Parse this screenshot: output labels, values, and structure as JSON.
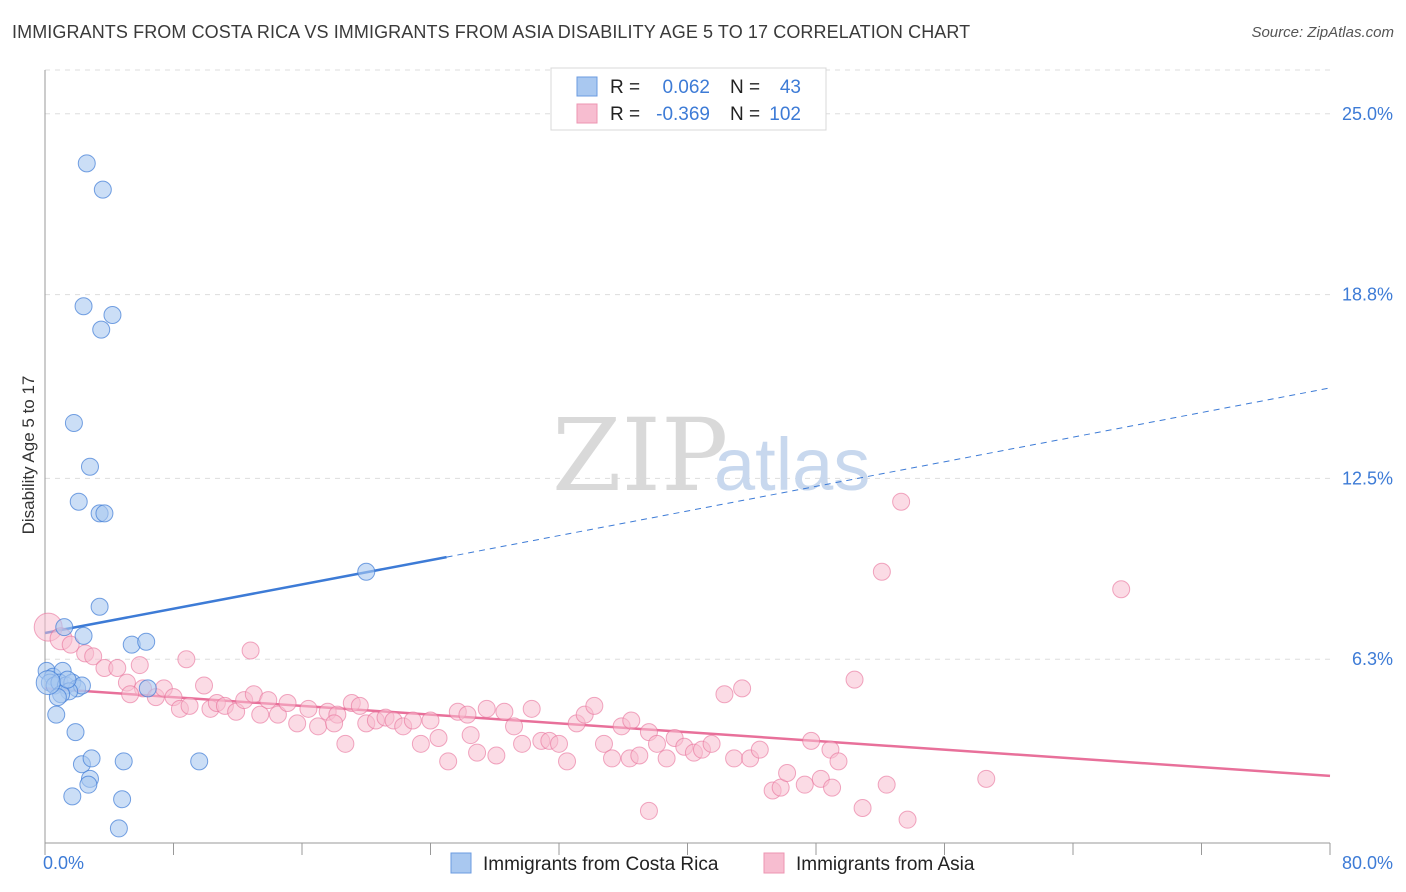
{
  "title": "IMMIGRANTS FROM COSTA RICA VS IMMIGRANTS FROM ASIA DISABILITY AGE 5 TO 17 CORRELATION CHART",
  "source": "Source: ZipAtlas.com",
  "watermark": {
    "zip": "ZIP",
    "atlas": "atlas"
  },
  "colors": {
    "blue": "#3d7bd6",
    "blue_fill": "#a9c8f0",
    "pink": "#e8709a",
    "pink_fill": "#f7bdd0",
    "grid": "#dddddd"
  },
  "chart_data": {
    "type": "scatter",
    "title": "IMMIGRANTS FROM COSTA RICA VS IMMIGRANTS FROM ASIA DISABILITY AGE 5 TO 17 CORRELATION CHART",
    "xlabel": "",
    "ylabel": "Disability Age 5 to 17",
    "xlim": [
      0,
      80
    ],
    "ylim": [
      0,
      26.5
    ],
    "x_tick_labels": [
      "0.0%",
      "80.0%"
    ],
    "y_ticks": [
      6.3,
      12.5,
      18.8,
      25.0
    ],
    "y_tick_labels": [
      "6.3%",
      "12.5%",
      "18.8%",
      "25.0%"
    ],
    "grid": true,
    "legend_position": "top-center",
    "legend": [
      {
        "r_label": "R =",
        "r": "0.062",
        "n_label": "N =",
        "n": "43"
      },
      {
        "r_label": "R =",
        "r": "-0.369",
        "n_label": "N =",
        "n": "102"
      }
    ],
    "series": [
      {
        "name": "Immigrants from Costa Rica",
        "trend": {
          "x0": 0,
          "y0": 7.2,
          "x1": 25,
          "y1": 9.8,
          "dash_to_x": 80,
          "dash_to_y": 15.6
        },
        "points": [
          [
            2.6,
            23.3
          ],
          [
            3.6,
            22.4
          ],
          [
            2.4,
            18.4
          ],
          [
            4.2,
            18.1
          ],
          [
            3.5,
            17.6
          ],
          [
            1.8,
            14.4
          ],
          [
            2.8,
            12.9
          ],
          [
            2.1,
            11.7
          ],
          [
            3.4,
            11.3
          ],
          [
            3.7,
            11.3
          ],
          [
            3.4,
            8.1
          ],
          [
            1.2,
            7.4
          ],
          [
            2.4,
            7.1
          ],
          [
            5.4,
            6.8
          ],
          [
            6.3,
            6.9
          ],
          [
            0.1,
            5.9
          ],
          [
            0.5,
            5.7
          ],
          [
            1.1,
            5.9
          ],
          [
            0.3,
            5.5
          ],
          [
            0.6,
            5.4
          ],
          [
            0.9,
            5.5
          ],
          [
            1.3,
            5.4
          ],
          [
            1.7,
            5.5
          ],
          [
            2.0,
            5.3
          ],
          [
            2.3,
            5.4
          ],
          [
            1.5,
            5.2
          ],
          [
            1.0,
            5.1
          ],
          [
            1.4,
            5.6
          ],
          [
            0.8,
            5.0
          ],
          [
            6.4,
            5.3
          ],
          [
            0.7,
            4.4
          ],
          [
            1.9,
            3.8
          ],
          [
            2.3,
            2.7
          ],
          [
            2.9,
            2.9
          ],
          [
            2.8,
            2.2
          ],
          [
            2.7,
            2.0
          ],
          [
            1.7,
            1.6
          ],
          [
            4.9,
            2.8
          ],
          [
            9.6,
            2.8
          ],
          [
            4.8,
            1.5
          ],
          [
            4.6,
            0.5
          ],
          [
            20.0,
            9.3
          ],
          [
            0.2,
            5.5
          ]
        ]
      },
      {
        "name": "Immigrants from Asia",
        "trend": {
          "x0": 0,
          "y0": 5.3,
          "x1": 80,
          "y1": 2.3
        },
        "points": [
          [
            0.2,
            7.4
          ],
          [
            1.0,
            7.0
          ],
          [
            1.6,
            6.8
          ],
          [
            2.5,
            6.5
          ],
          [
            3.0,
            6.4
          ],
          [
            3.7,
            6.0
          ],
          [
            4.5,
            6.0
          ],
          [
            5.9,
            6.1
          ],
          [
            5.1,
            5.5
          ],
          [
            6.1,
            5.3
          ],
          [
            5.3,
            5.1
          ],
          [
            6.9,
            5.0
          ],
          [
            7.4,
            5.3
          ],
          [
            8.0,
            5.0
          ],
          [
            8.4,
            4.6
          ],
          [
            9.0,
            4.7
          ],
          [
            9.9,
            5.4
          ],
          [
            10.3,
            4.6
          ],
          [
            10.7,
            4.8
          ],
          [
            11.2,
            4.7
          ],
          [
            11.9,
            4.5
          ],
          [
            12.4,
            4.9
          ],
          [
            13.0,
            5.1
          ],
          [
            13.4,
            4.4
          ],
          [
            13.9,
            4.9
          ],
          [
            14.5,
            4.4
          ],
          [
            15.1,
            4.8
          ],
          [
            15.7,
            4.1
          ],
          [
            16.4,
            4.6
          ],
          [
            17.0,
            4.0
          ],
          [
            17.6,
            4.5
          ],
          [
            18.2,
            4.4
          ],
          [
            18.7,
            3.4
          ],
          [
            19.1,
            4.8
          ],
          [
            19.6,
            4.7
          ],
          [
            20.0,
            4.1
          ],
          [
            20.6,
            4.2
          ],
          [
            21.2,
            4.3
          ],
          [
            21.7,
            4.2
          ],
          [
            22.3,
            4.0
          ],
          [
            22.9,
            4.2
          ],
          [
            23.4,
            3.4
          ],
          [
            24.0,
            4.2
          ],
          [
            24.5,
            3.6
          ],
          [
            25.1,
            2.8
          ],
          [
            25.7,
            4.5
          ],
          [
            26.3,
            4.4
          ],
          [
            26.9,
            3.1
          ],
          [
            27.5,
            4.6
          ],
          [
            28.1,
            3.0
          ],
          [
            28.6,
            4.5
          ],
          [
            29.2,
            4.0
          ],
          [
            29.7,
            3.4
          ],
          [
            30.3,
            4.6
          ],
          [
            30.9,
            3.5
          ],
          [
            31.4,
            3.5
          ],
          [
            32.0,
            3.4
          ],
          [
            32.5,
            2.8
          ],
          [
            33.1,
            4.1
          ],
          [
            33.6,
            4.4
          ],
          [
            34.2,
            4.7
          ],
          [
            34.8,
            3.4
          ],
          [
            35.3,
            2.9
          ],
          [
            35.9,
            4.0
          ],
          [
            36.4,
            2.9
          ],
          [
            37.0,
            3.0
          ],
          [
            37.6,
            3.8
          ],
          [
            38.1,
            3.4
          ],
          [
            38.7,
            2.9
          ],
          [
            39.2,
            3.6
          ],
          [
            39.8,
            3.3
          ],
          [
            40.4,
            3.1
          ],
          [
            40.9,
            3.2
          ],
          [
            41.5,
            3.4
          ],
          [
            37.6,
            1.1
          ],
          [
            42.3,
            5.1
          ],
          [
            42.9,
            2.9
          ],
          [
            43.4,
            5.3
          ],
          [
            43.9,
            2.9
          ],
          [
            44.5,
            3.2
          ],
          [
            45.3,
            1.8
          ],
          [
            45.8,
            1.9
          ],
          [
            46.2,
            2.4
          ],
          [
            47.3,
            2.0
          ],
          [
            47.7,
            3.5
          ],
          [
            48.3,
            2.2
          ],
          [
            48.9,
            3.2
          ],
          [
            49.4,
            2.8
          ],
          [
            49.0,
            1.9
          ],
          [
            50.4,
            5.6
          ],
          [
            50.9,
            1.2
          ],
          [
            52.1,
            9.3
          ],
          [
            52.4,
            2.0
          ],
          [
            53.3,
            11.7
          ],
          [
            53.7,
            0.8
          ],
          [
            67.0,
            8.7
          ],
          [
            58.6,
            2.2
          ],
          [
            12.8,
            6.6
          ],
          [
            18.0,
            4.1
          ],
          [
            36.5,
            4.2
          ],
          [
            26.5,
            3.7
          ],
          [
            8.8,
            6.3
          ]
        ]
      }
    ]
  }
}
